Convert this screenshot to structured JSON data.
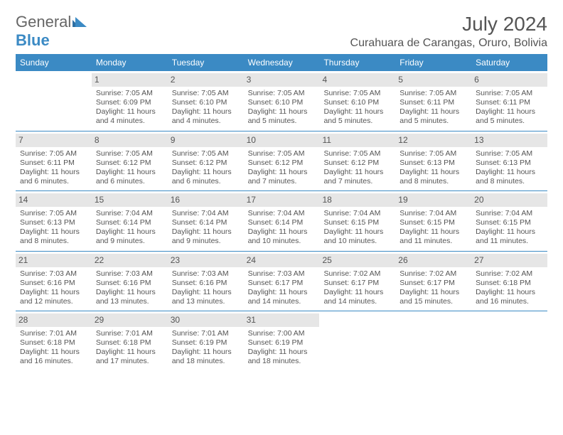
{
  "logo": {
    "text1": "General",
    "text2": "Blue"
  },
  "title": "July 2024",
  "location": "Curahuara de Carangas, Oruro, Bolivia",
  "colors": {
    "header_bg": "#3b8ac4",
    "header_text": "#ffffff",
    "daynum_bg": "#e6e6e6",
    "border": "#3b8ac4",
    "body_text": "#555555",
    "page_bg": "#ffffff"
  },
  "weekdays": [
    "Sunday",
    "Monday",
    "Tuesday",
    "Wednesday",
    "Thursday",
    "Friday",
    "Saturday"
  ],
  "weeks": [
    [
      {
        "num": "",
        "sr": "",
        "ss": "",
        "dl": ""
      },
      {
        "num": "1",
        "sr": "Sunrise: 7:05 AM",
        "ss": "Sunset: 6:09 PM",
        "dl": "Daylight: 11 hours and 4 minutes."
      },
      {
        "num": "2",
        "sr": "Sunrise: 7:05 AM",
        "ss": "Sunset: 6:10 PM",
        "dl": "Daylight: 11 hours and 4 minutes."
      },
      {
        "num": "3",
        "sr": "Sunrise: 7:05 AM",
        "ss": "Sunset: 6:10 PM",
        "dl": "Daylight: 11 hours and 5 minutes."
      },
      {
        "num": "4",
        "sr": "Sunrise: 7:05 AM",
        "ss": "Sunset: 6:10 PM",
        "dl": "Daylight: 11 hours and 5 minutes."
      },
      {
        "num": "5",
        "sr": "Sunrise: 7:05 AM",
        "ss": "Sunset: 6:11 PM",
        "dl": "Daylight: 11 hours and 5 minutes."
      },
      {
        "num": "6",
        "sr": "Sunrise: 7:05 AM",
        "ss": "Sunset: 6:11 PM",
        "dl": "Daylight: 11 hours and 5 minutes."
      }
    ],
    [
      {
        "num": "7",
        "sr": "Sunrise: 7:05 AM",
        "ss": "Sunset: 6:11 PM",
        "dl": "Daylight: 11 hours and 6 minutes."
      },
      {
        "num": "8",
        "sr": "Sunrise: 7:05 AM",
        "ss": "Sunset: 6:12 PM",
        "dl": "Daylight: 11 hours and 6 minutes."
      },
      {
        "num": "9",
        "sr": "Sunrise: 7:05 AM",
        "ss": "Sunset: 6:12 PM",
        "dl": "Daylight: 11 hours and 6 minutes."
      },
      {
        "num": "10",
        "sr": "Sunrise: 7:05 AM",
        "ss": "Sunset: 6:12 PM",
        "dl": "Daylight: 11 hours and 7 minutes."
      },
      {
        "num": "11",
        "sr": "Sunrise: 7:05 AM",
        "ss": "Sunset: 6:12 PM",
        "dl": "Daylight: 11 hours and 7 minutes."
      },
      {
        "num": "12",
        "sr": "Sunrise: 7:05 AM",
        "ss": "Sunset: 6:13 PM",
        "dl": "Daylight: 11 hours and 8 minutes."
      },
      {
        "num": "13",
        "sr": "Sunrise: 7:05 AM",
        "ss": "Sunset: 6:13 PM",
        "dl": "Daylight: 11 hours and 8 minutes."
      }
    ],
    [
      {
        "num": "14",
        "sr": "Sunrise: 7:05 AM",
        "ss": "Sunset: 6:13 PM",
        "dl": "Daylight: 11 hours and 8 minutes."
      },
      {
        "num": "15",
        "sr": "Sunrise: 7:04 AM",
        "ss": "Sunset: 6:14 PM",
        "dl": "Daylight: 11 hours and 9 minutes."
      },
      {
        "num": "16",
        "sr": "Sunrise: 7:04 AM",
        "ss": "Sunset: 6:14 PM",
        "dl": "Daylight: 11 hours and 9 minutes."
      },
      {
        "num": "17",
        "sr": "Sunrise: 7:04 AM",
        "ss": "Sunset: 6:14 PM",
        "dl": "Daylight: 11 hours and 10 minutes."
      },
      {
        "num": "18",
        "sr": "Sunrise: 7:04 AM",
        "ss": "Sunset: 6:15 PM",
        "dl": "Daylight: 11 hours and 10 minutes."
      },
      {
        "num": "19",
        "sr": "Sunrise: 7:04 AM",
        "ss": "Sunset: 6:15 PM",
        "dl": "Daylight: 11 hours and 11 minutes."
      },
      {
        "num": "20",
        "sr": "Sunrise: 7:04 AM",
        "ss": "Sunset: 6:15 PM",
        "dl": "Daylight: 11 hours and 11 minutes."
      }
    ],
    [
      {
        "num": "21",
        "sr": "Sunrise: 7:03 AM",
        "ss": "Sunset: 6:16 PM",
        "dl": "Daylight: 11 hours and 12 minutes."
      },
      {
        "num": "22",
        "sr": "Sunrise: 7:03 AM",
        "ss": "Sunset: 6:16 PM",
        "dl": "Daylight: 11 hours and 13 minutes."
      },
      {
        "num": "23",
        "sr": "Sunrise: 7:03 AM",
        "ss": "Sunset: 6:16 PM",
        "dl": "Daylight: 11 hours and 13 minutes."
      },
      {
        "num": "24",
        "sr": "Sunrise: 7:03 AM",
        "ss": "Sunset: 6:17 PM",
        "dl": "Daylight: 11 hours and 14 minutes."
      },
      {
        "num": "25",
        "sr": "Sunrise: 7:02 AM",
        "ss": "Sunset: 6:17 PM",
        "dl": "Daylight: 11 hours and 14 minutes."
      },
      {
        "num": "26",
        "sr": "Sunrise: 7:02 AM",
        "ss": "Sunset: 6:17 PM",
        "dl": "Daylight: 11 hours and 15 minutes."
      },
      {
        "num": "27",
        "sr": "Sunrise: 7:02 AM",
        "ss": "Sunset: 6:18 PM",
        "dl": "Daylight: 11 hours and 16 minutes."
      }
    ],
    [
      {
        "num": "28",
        "sr": "Sunrise: 7:01 AM",
        "ss": "Sunset: 6:18 PM",
        "dl": "Daylight: 11 hours and 16 minutes."
      },
      {
        "num": "29",
        "sr": "Sunrise: 7:01 AM",
        "ss": "Sunset: 6:18 PM",
        "dl": "Daylight: 11 hours and 17 minutes."
      },
      {
        "num": "30",
        "sr": "Sunrise: 7:01 AM",
        "ss": "Sunset: 6:19 PM",
        "dl": "Daylight: 11 hours and 18 minutes."
      },
      {
        "num": "31",
        "sr": "Sunrise: 7:00 AM",
        "ss": "Sunset: 6:19 PM",
        "dl": "Daylight: 11 hours and 18 minutes."
      },
      {
        "num": "",
        "sr": "",
        "ss": "",
        "dl": ""
      },
      {
        "num": "",
        "sr": "",
        "ss": "",
        "dl": ""
      },
      {
        "num": "",
        "sr": "",
        "ss": "",
        "dl": ""
      }
    ]
  ]
}
